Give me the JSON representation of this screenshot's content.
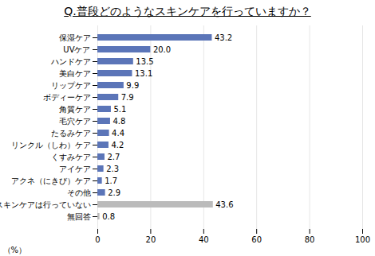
{
  "chart_data": {
    "type": "bar",
    "orientation": "horizontal",
    "title": "Q.普段どのようなスキンケアを行っていますか？",
    "categories": [
      "保湿ケア",
      "UVケア",
      "ハンドケア",
      "美白ケア",
      "リップケア",
      "ボディーケア",
      "角質ケア",
      "毛穴ケア",
      "たるみケア",
      "リンクル（しわ）ケア",
      "くすみケア",
      "アイケア",
      "アクネ（にきび）ケア",
      "その他",
      "スキンケアは行っていない",
      "無回答"
    ],
    "values": [
      43.2,
      20.0,
      13.5,
      13.1,
      9.9,
      7.9,
      5.1,
      4.8,
      4.4,
      4.2,
      2.7,
      2.3,
      1.7,
      2.9,
      43.6,
      0.8
    ],
    "value_labels": [
      "43.2",
      "20.0",
      "13.5",
      "13.1",
      "9.9",
      "7.9",
      "5.1",
      "4.8",
      "4.4",
      "4.2",
      "2.7",
      "2.3",
      "1.7",
      "2.9",
      "43.6",
      "0.8"
    ],
    "colors": [
      "#5B75B8",
      "#5B75B8",
      "#5B75B8",
      "#5B75B8",
      "#5B75B8",
      "#5B75B8",
      "#5B75B8",
      "#5B75B8",
      "#5B75B8",
      "#5B75B8",
      "#5B75B8",
      "#5B75B8",
      "#5B75B8",
      "#5B75B8",
      "#BBBBBB",
      "#BBBBBB"
    ],
    "xlim": [
      0,
      100
    ],
    "xticks": [
      0,
      20,
      40,
      60,
      80,
      100
    ],
    "xlabel": "（%）",
    "grid": true,
    "data_labels": true
  }
}
